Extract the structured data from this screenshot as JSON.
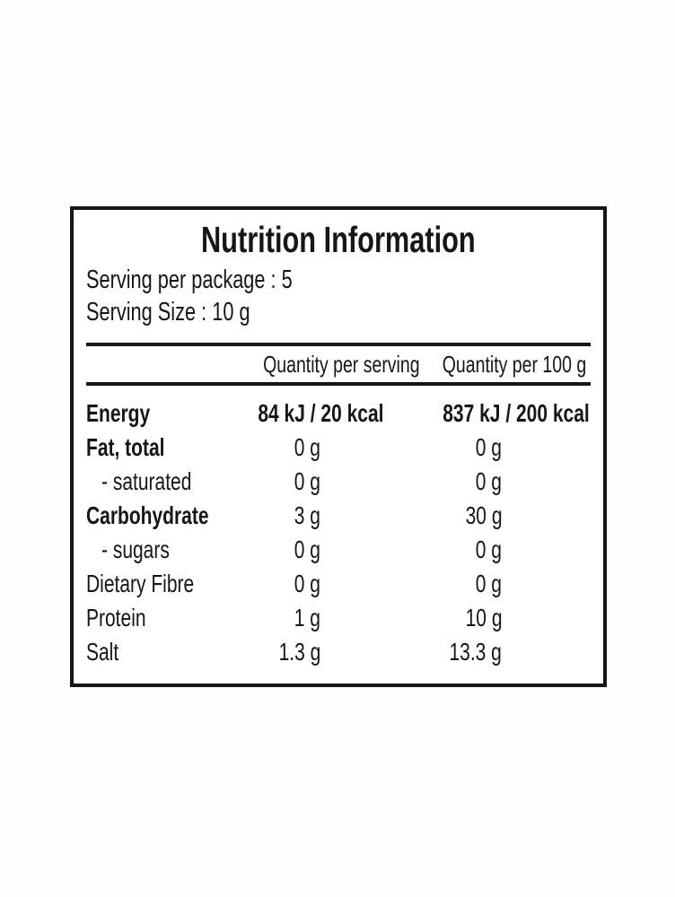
{
  "label": {
    "title": "Nutrition Information",
    "serving_per_package": "Serving per package : 5",
    "serving_size": "Serving Size : 10 g",
    "columns": [
      "Quantity per serving",
      "Quantity per 100 g"
    ],
    "rows": [
      {
        "name": "Energy",
        "per_serving": "84 kJ / 20 kcal",
        "per_100g": "837 kJ / 200 kcal",
        "label_bold": true,
        "value_bold": true,
        "indent": false
      },
      {
        "name": "Fat, total",
        "per_serving": "0 g",
        "per_100g": "0 g",
        "label_bold": true,
        "value_bold": false,
        "indent": false
      },
      {
        "name": "- saturated",
        "per_serving": "0 g",
        "per_100g": "0 g",
        "label_bold": false,
        "value_bold": false,
        "indent": true
      },
      {
        "name": "Carbohydrate",
        "per_serving": "3 g",
        "per_100g": "30 g",
        "label_bold": true,
        "value_bold": false,
        "indent": false
      },
      {
        "name": "- sugars",
        "per_serving": "0 g",
        "per_100g": "0 g",
        "label_bold": false,
        "value_bold": false,
        "indent": true
      },
      {
        "name": "Dietary Fibre",
        "per_serving": "0 g",
        "per_100g": "0 g",
        "label_bold": false,
        "value_bold": false,
        "indent": false
      },
      {
        "name": "Protein",
        "per_serving": "1 g",
        "per_100g": "10 g",
        "label_bold": false,
        "value_bold": false,
        "indent": false
      },
      {
        "name": "Salt",
        "per_serving": "1.3 g",
        "per_100g": "13.3 g",
        "label_bold": false,
        "value_bold": false,
        "indent": false
      }
    ],
    "colors": {
      "text": "#161616",
      "border": "#161616",
      "panel_background": "#ffffff"
    }
  }
}
